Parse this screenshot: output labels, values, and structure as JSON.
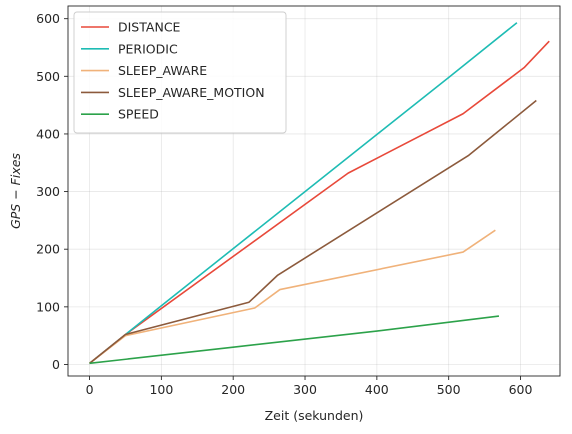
{
  "chart_data": {
    "type": "line",
    "xlabel": "Zeit (sekunden)",
    "ylabel": "GPS − Fixes",
    "xlim": [
      -30,
      655
    ],
    "ylim": [
      -20,
      622
    ],
    "xticks": [
      0,
      100,
      200,
      300,
      400,
      500,
      600
    ],
    "yticks": [
      0,
      100,
      200,
      300,
      400,
      500,
      600
    ],
    "grid": true,
    "legend_position": "upper left",
    "series": [
      {
        "name": "DISTANCE",
        "color": "#e8493a",
        "x": [
          0,
          50,
          360,
          520,
          605,
          640
        ],
        "y": [
          2,
          52,
          332,
          435,
          515,
          561
        ]
      },
      {
        "name": "PERIODIC",
        "color": "#1ebcb4",
        "x": [
          0,
          100,
          200,
          300,
          400,
          500,
          595
        ],
        "y": [
          2,
          102,
          201,
          300,
          399,
          498,
          593
        ]
      },
      {
        "name": "SLEEP_AWARE",
        "color": "#f0b27a",
        "x": [
          0,
          50,
          230,
          265,
          520,
          565
        ],
        "y": [
          2,
          50,
          98,
          130,
          195,
          233
        ]
      },
      {
        "name": "SLEEP_AWARE_MOTION",
        "color": "#8c5a3c",
        "x": [
          0,
          50,
          222,
          262,
          528,
          622
        ],
        "y": [
          2,
          52,
          108,
          155,
          363,
          458
        ]
      },
      {
        "name": "SPEED",
        "color": "#2ca24a",
        "x": [
          0,
          200,
          400,
          570
        ],
        "y": [
          2,
          30,
          58,
          84
        ]
      }
    ]
  }
}
